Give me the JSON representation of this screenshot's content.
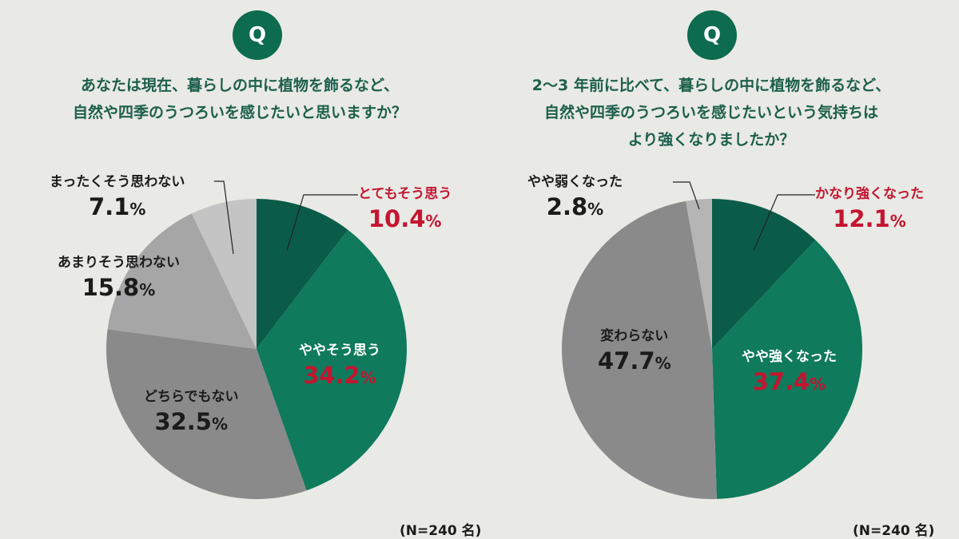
{
  "badge_label": "Q",
  "sample_note": "(N=240 名)",
  "colors": {
    "dark_green": "#0a5c48",
    "green": "#0f7a5c",
    "dark_gray": "#8a8a8a",
    "mid_gray": "#a6a6a6",
    "light_gray": "#c4c4c4",
    "label_red": "#c41530",
    "question_text": "#1c5f4b"
  },
  "chart_data": [
    {
      "type": "pie",
      "title_lines": [
        "あなたは現在、暮らしの中に植物を飾るなど、",
        "自然や四季のうつろいを感じたいと思いますか？"
      ],
      "slices": [
        {
          "label": "とてもそう思う",
          "value": 10.4,
          "display": "10.4",
          "unit": "%",
          "color": "#0a5c48"
        },
        {
          "label": "ややそう思う",
          "value": 34.2,
          "display": "34.2",
          "unit": "%",
          "color": "#0f7a5c"
        },
        {
          "label": "どちらでもない",
          "value": 32.5,
          "display": "32.5",
          "unit": "%",
          "color": "#8a8a8a"
        },
        {
          "label": "あまりそう思わない",
          "value": 15.8,
          "display": "15.8",
          "unit": "%",
          "color": "#a6a6a6"
        },
        {
          "label": "まったくそう思わない",
          "value": 7.1,
          "display": "7.1",
          "unit": "%",
          "color": "#c4c4c4"
        }
      ],
      "start": "12 o'clock",
      "direction": "clockwise"
    },
    {
      "type": "pie",
      "title_lines": [
        "2～3 年前に比べて、暮らしの中に植物を飾るなど、",
        "自然や四季のうつろいを感じたいという気持ちは",
        "より強くなりましたか？"
      ],
      "slices": [
        {
          "label": "かなり強くなった",
          "value": 12.1,
          "display": "12.1",
          "unit": "%",
          "color": "#0a5c48"
        },
        {
          "label": "やや強くなった",
          "value": 37.4,
          "display": "37.4",
          "unit": "%",
          "color": "#0f7a5c"
        },
        {
          "label": "変わらない",
          "value": 47.7,
          "display": "47.7",
          "unit": "%",
          "color": "#8a8a8a"
        },
        {
          "label": "やや弱くなった",
          "value": 2.8,
          "display": "2.8",
          "unit": "%",
          "color": "#b5b5b5"
        }
      ],
      "start": "12 o'clock",
      "direction": "clockwise"
    }
  ]
}
